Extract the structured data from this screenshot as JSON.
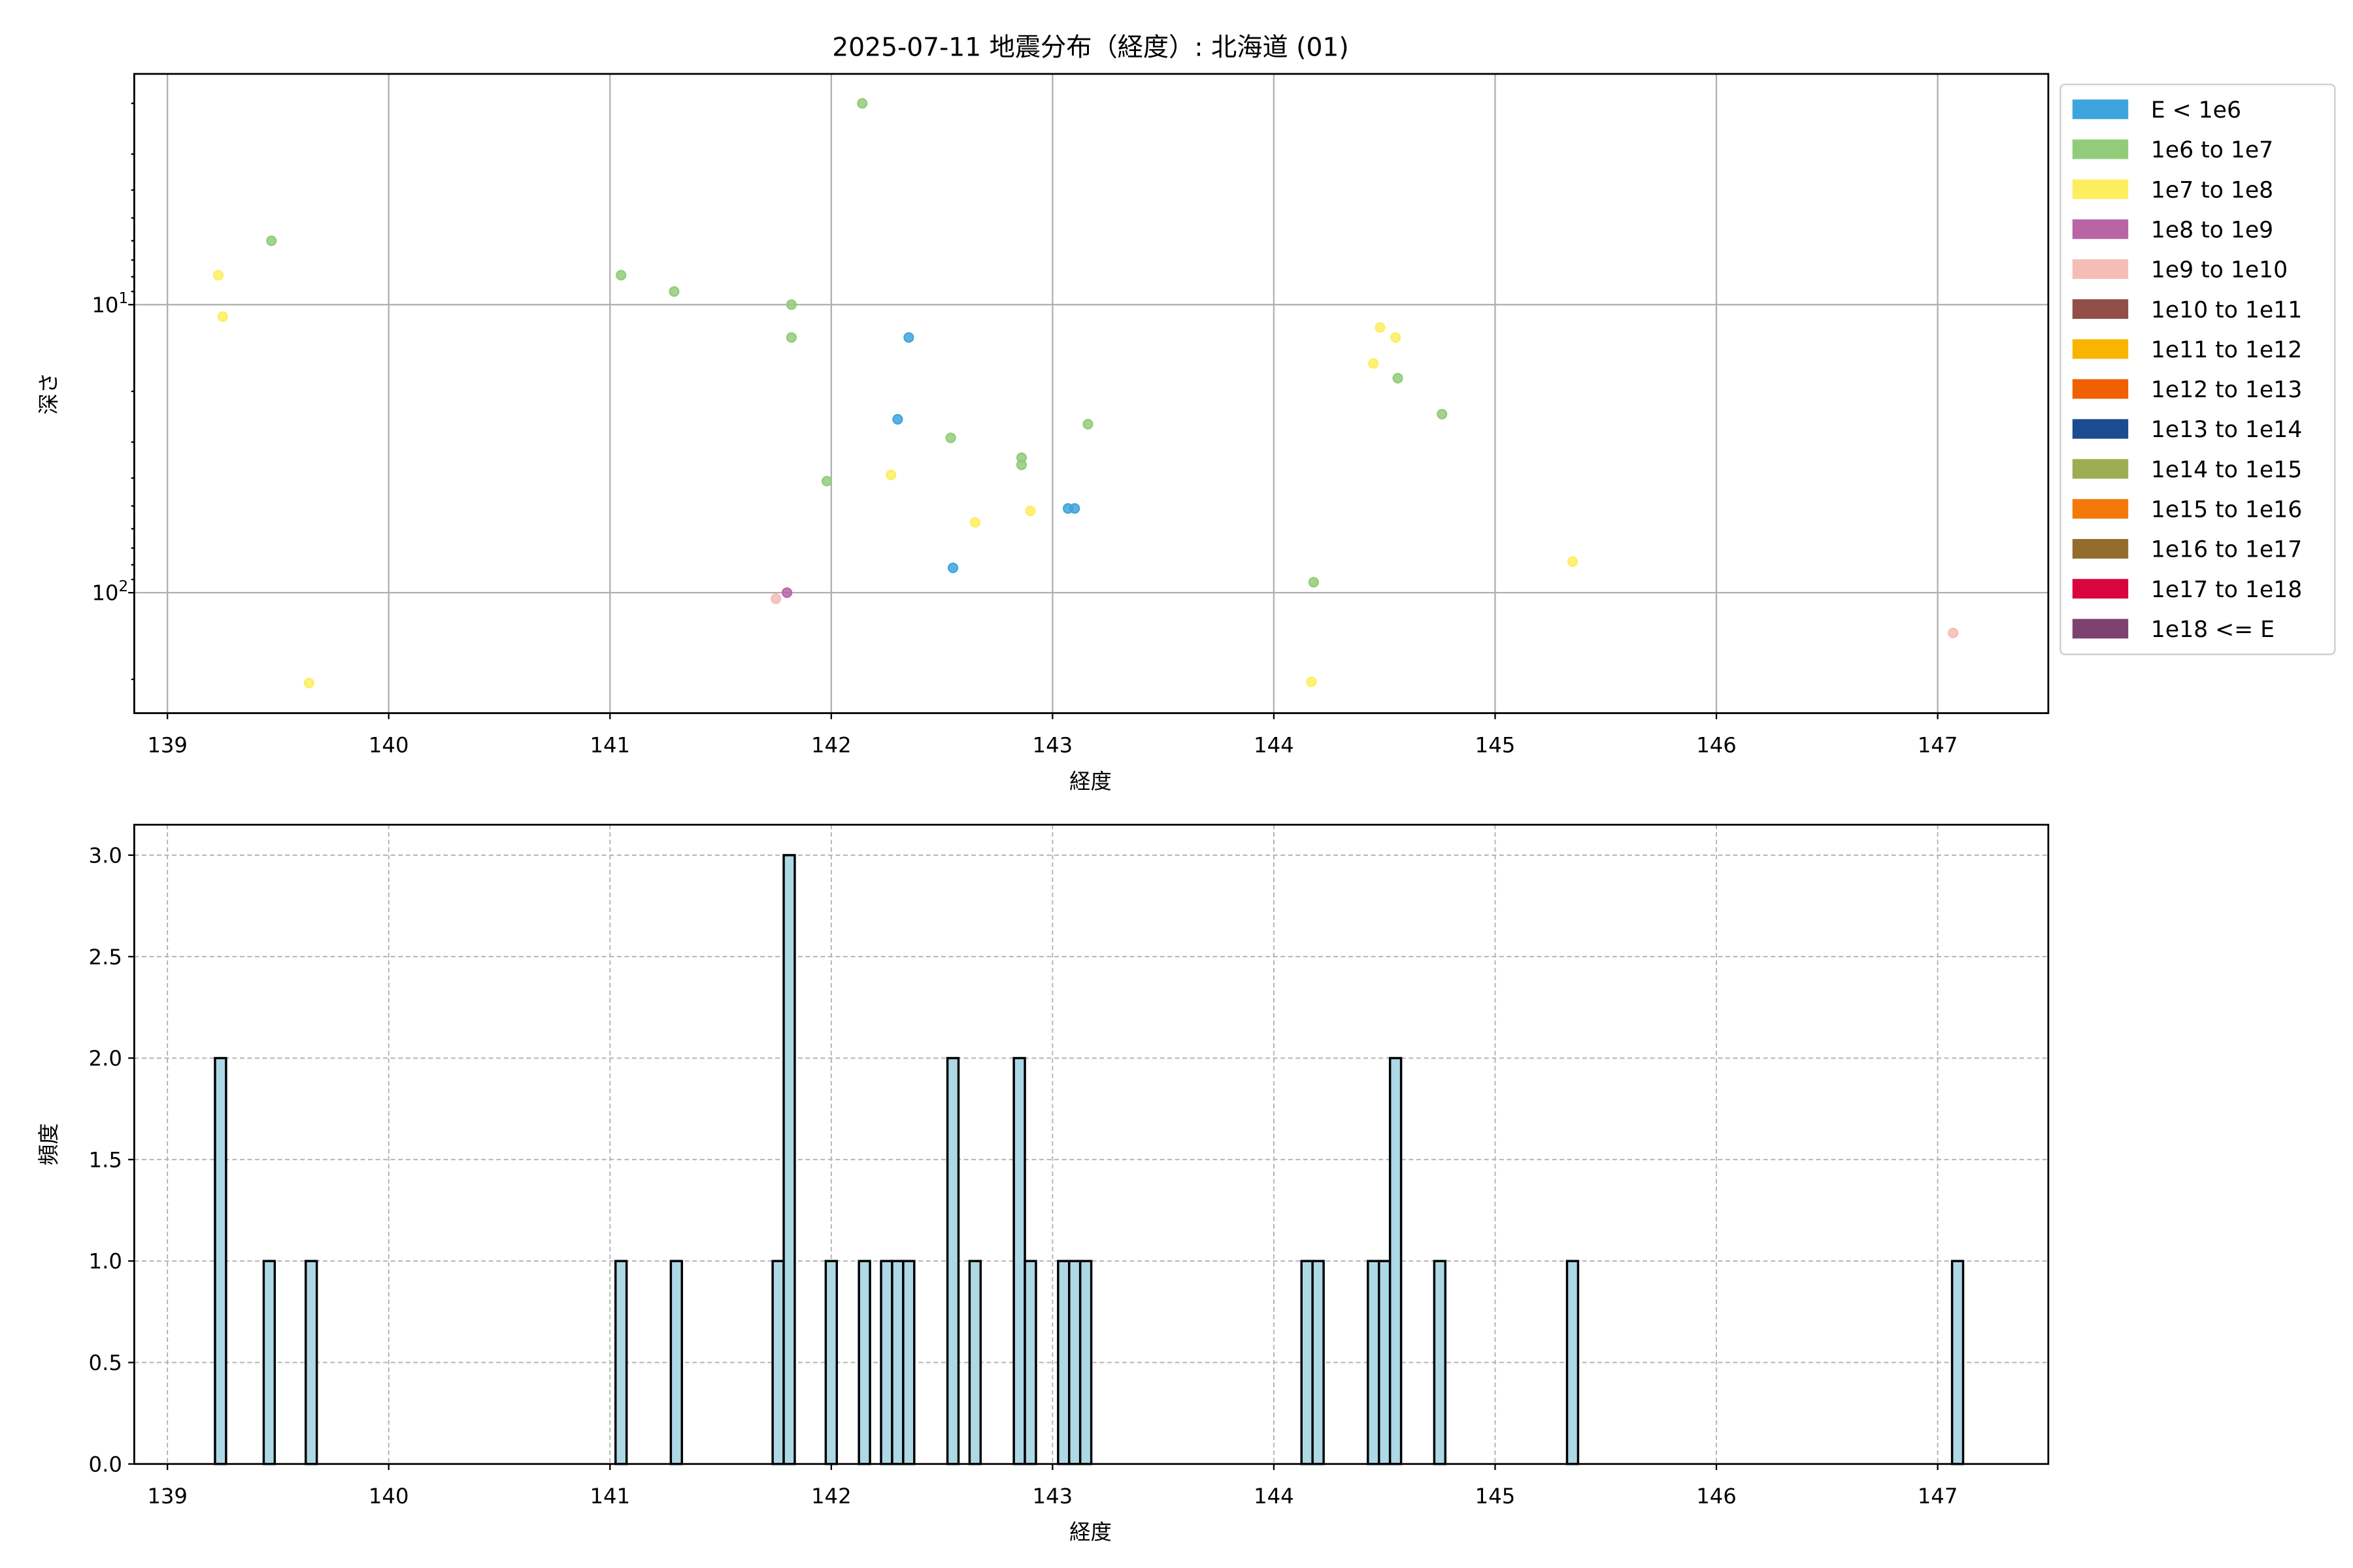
{
  "chart_data": [
    {
      "type": "scatter",
      "title": "2025-07-11 地震分布（経度）: 北海道 (01)",
      "xlabel": "経度",
      "ylabel": "深さ",
      "xlim": [
        138.85,
        147.5
      ],
      "ylim": [
        262,
        1.58
      ],
      "yscale": "log",
      "y_inverted": true,
      "xticks": [
        139,
        140,
        141,
        142,
        143,
        144,
        145,
        146,
        147
      ],
      "yticks": [
        {
          "value": 10,
          "label_base": "10",
          "label_exp": "1"
        },
        {
          "value": 100,
          "label_base": "10",
          "label_exp": "2"
        }
      ],
      "grid": true,
      "legend_position": "outside-right",
      "legend": [
        {
          "label": "E < 1e6",
          "color": "#3ea4dd"
        },
        {
          "label": "1e6 to 1e7",
          "color": "#92cc7a"
        },
        {
          "label": "1e7 to 1e8",
          "color": "#fdee60"
        },
        {
          "label": "1e8 to 1e9",
          "color": "#b965a5"
        },
        {
          "label": "1e9 to 1e10",
          "color": "#f6bcb6"
        },
        {
          "label": "1e10 to 1e11",
          "color": "#914f48"
        },
        {
          "label": "1e11 to 1e12",
          "color": "#f8b500"
        },
        {
          "label": "1e12 to 1e13",
          "color": "#ee6000"
        },
        {
          "label": "1e13 to 1e14",
          "color": "#1b4b90"
        },
        {
          "label": "1e14 to 1e15",
          "color": "#9dad53"
        },
        {
          "label": "1e15 to 1e16",
          "color": "#f37a0a"
        },
        {
          "label": "1e16 to 1e17",
          "color": "#946d2e"
        },
        {
          "label": "1e17 to 1e18",
          "color": "#d8063c"
        },
        {
          "label": "1e18 <= E",
          "color": "#7d426f"
        }
      ],
      "points": [
        {
          "x": 139.23,
          "y": 7.9,
          "c": 2
        },
        {
          "x": 139.25,
          "y": 11,
          "c": 2
        },
        {
          "x": 139.47,
          "y": 6,
          "c": 1
        },
        {
          "x": 139.64,
          "y": 206,
          "c": 2
        },
        {
          "x": 141.05,
          "y": 7.9,
          "c": 1
        },
        {
          "x": 141.29,
          "y": 9,
          "c": 1
        },
        {
          "x": 141.82,
          "y": 10,
          "c": 1
        },
        {
          "x": 141.82,
          "y": 13,
          "c": 1
        },
        {
          "x": 142.14,
          "y": 2,
          "c": 1
        },
        {
          "x": 142.35,
          "y": 13,
          "c": 0
        },
        {
          "x": 142.3,
          "y": 25,
          "c": 0
        },
        {
          "x": 142.54,
          "y": 29,
          "c": 1
        },
        {
          "x": 142.86,
          "y": 34,
          "c": 1
        },
        {
          "x": 142.86,
          "y": 36,
          "c": 1
        },
        {
          "x": 143.16,
          "y": 26,
          "c": 1
        },
        {
          "x": 141.98,
          "y": 41,
          "c": 1
        },
        {
          "x": 142.27,
          "y": 39,
          "c": 2
        },
        {
          "x": 142.65,
          "y": 57,
          "c": 2
        },
        {
          "x": 142.9,
          "y": 52,
          "c": 2
        },
        {
          "x": 143.07,
          "y": 51,
          "c": 0
        },
        {
          "x": 143.1,
          "y": 51,
          "c": 0
        },
        {
          "x": 142.55,
          "y": 82,
          "c": 0
        },
        {
          "x": 141.8,
          "y": 100,
          "c": 3
        },
        {
          "x": 141.75,
          "y": 105,
          "c": 4
        },
        {
          "x": 144.18,
          "y": 92,
          "c": 1
        },
        {
          "x": 144.48,
          "y": 12,
          "c": 2
        },
        {
          "x": 144.55,
          "y": 13,
          "c": 2
        },
        {
          "x": 144.45,
          "y": 16,
          "c": 2
        },
        {
          "x": 144.56,
          "y": 18,
          "c": 1
        },
        {
          "x": 144.76,
          "y": 24,
          "c": 1
        },
        {
          "x": 144.17,
          "y": 204,
          "c": 2
        },
        {
          "x": 145.35,
          "y": 78,
          "c": 2
        },
        {
          "x": 147.07,
          "y": 138,
          "c": 4
        }
      ]
    },
    {
      "type": "bar",
      "xlabel": "経度",
      "ylabel": "頻度",
      "xlim": [
        138.85,
        147.5
      ],
      "ylim": [
        0,
        3.15
      ],
      "xticks": [
        139,
        140,
        141,
        142,
        143,
        144,
        145,
        146,
        147
      ],
      "yticks": [
        "0.0",
        "0.5",
        "1.0",
        "1.5",
        "2.0",
        "2.5",
        "3.0"
      ],
      "grid": "dashed",
      "bar_color": "#add8e6",
      "edge_color": "#000000",
      "bin_width": 0.05,
      "bins": [
        {
          "x": 139.24,
          "n": 2
        },
        {
          "x": 139.46,
          "n": 1
        },
        {
          "x": 139.65,
          "n": 1
        },
        {
          "x": 141.05,
          "n": 1
        },
        {
          "x": 141.3,
          "n": 1
        },
        {
          "x": 141.76,
          "n": 1
        },
        {
          "x": 141.81,
          "n": 3
        },
        {
          "x": 142.0,
          "n": 1
        },
        {
          "x": 142.15,
          "n": 1
        },
        {
          "x": 142.25,
          "n": 1
        },
        {
          "x": 142.3,
          "n": 1
        },
        {
          "x": 142.35,
          "n": 1
        },
        {
          "x": 142.55,
          "n": 2
        },
        {
          "x": 142.65,
          "n": 1
        },
        {
          "x": 142.85,
          "n": 2
        },
        {
          "x": 142.9,
          "n": 1
        },
        {
          "x": 143.05,
          "n": 1
        },
        {
          "x": 143.1,
          "n": 1
        },
        {
          "x": 143.15,
          "n": 1
        },
        {
          "x": 144.15,
          "n": 1
        },
        {
          "x": 144.2,
          "n": 1
        },
        {
          "x": 144.45,
          "n": 1
        },
        {
          "x": 144.5,
          "n": 1
        },
        {
          "x": 144.55,
          "n": 2
        },
        {
          "x": 144.75,
          "n": 1
        },
        {
          "x": 145.35,
          "n": 1
        },
        {
          "x": 147.09,
          "n": 1
        }
      ]
    }
  ]
}
